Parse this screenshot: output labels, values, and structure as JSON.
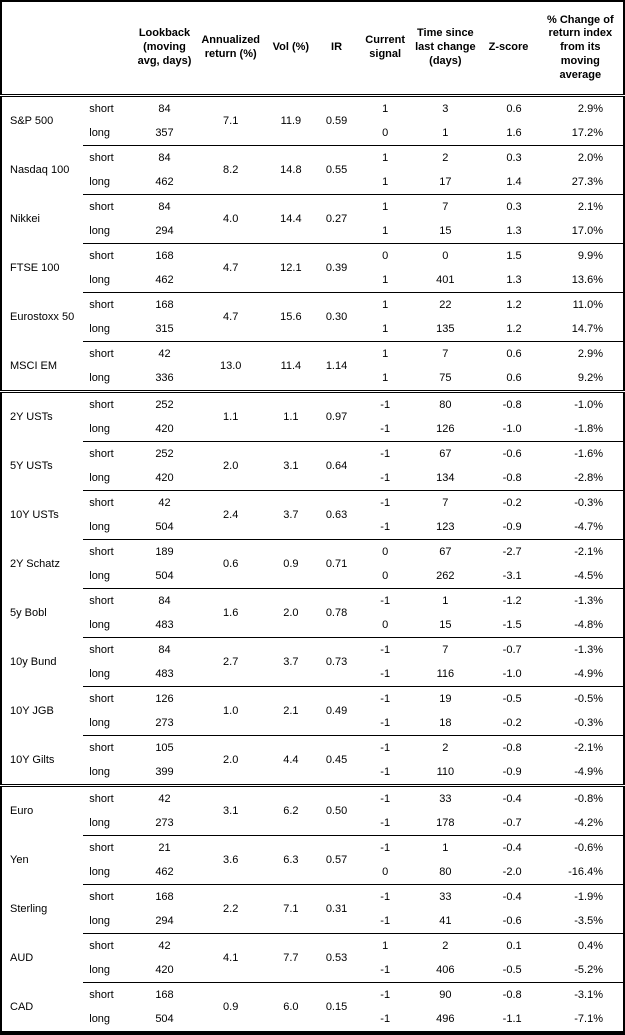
{
  "table": {
    "headers": [
      "",
      "",
      "Lookback (moving avg, days)",
      "Annualized return (%)",
      "Vol (%)",
      "IR",
      "Current signal",
      "Time since last change (days)",
      "Z-score",
      "% Change of return index from its moving average"
    ],
    "sections": [
      {
        "assets": [
          {
            "name": "S&P 500",
            "annualized_return": "7.1",
            "vol": "11.9",
            "ir": "0.59",
            "rows": [
              {
                "horizon": "short",
                "lookback": "84",
                "signal": "1",
                "time_since": "3",
                "z_score": "0.6",
                "pct_change": "2.9%"
              },
              {
                "horizon": "long",
                "lookback": "357",
                "signal": "0",
                "time_since": "1",
                "z_score": "1.6",
                "pct_change": "17.2%"
              }
            ]
          },
          {
            "name": "Nasdaq 100",
            "annualized_return": "8.2",
            "vol": "14.8",
            "ir": "0.55",
            "rows": [
              {
                "horizon": "short",
                "lookback": "84",
                "signal": "1",
                "time_since": "2",
                "z_score": "0.3",
                "pct_change": "2.0%"
              },
              {
                "horizon": "long",
                "lookback": "462",
                "signal": "1",
                "time_since": "17",
                "z_score": "1.4",
                "pct_change": "27.3%"
              }
            ]
          },
          {
            "name": "Nikkei",
            "annualized_return": "4.0",
            "vol": "14.4",
            "ir": "0.27",
            "rows": [
              {
                "horizon": "short",
                "lookback": "84",
                "signal": "1",
                "time_since": "7",
                "z_score": "0.3",
                "pct_change": "2.1%"
              },
              {
                "horizon": "long",
                "lookback": "294",
                "signal": "1",
                "time_since": "15",
                "z_score": "1.3",
                "pct_change": "17.0%"
              }
            ]
          },
          {
            "name": "FTSE 100",
            "annualized_return": "4.7",
            "vol": "12.1",
            "ir": "0.39",
            "rows": [
              {
                "horizon": "short",
                "lookback": "168",
                "signal": "0",
                "time_since": "0",
                "z_score": "1.5",
                "pct_change": "9.9%"
              },
              {
                "horizon": "long",
                "lookback": "462",
                "signal": "1",
                "time_since": "401",
                "z_score": "1.3",
                "pct_change": "13.6%"
              }
            ]
          },
          {
            "name": "Eurostoxx 50",
            "annualized_return": "4.7",
            "vol": "15.6",
            "ir": "0.30",
            "rows": [
              {
                "horizon": "short",
                "lookback": "168",
                "signal": "1",
                "time_since": "22",
                "z_score": "1.2",
                "pct_change": "11.0%"
              },
              {
                "horizon": "long",
                "lookback": "315",
                "signal": "1",
                "time_since": "135",
                "z_score": "1.2",
                "pct_change": "14.7%"
              }
            ]
          },
          {
            "name": "MSCI EM",
            "annualized_return": "13.0",
            "vol": "11.4",
            "ir": "1.14",
            "rows": [
              {
                "horizon": "short",
                "lookback": "42",
                "signal": "1",
                "time_since": "7",
                "z_score": "0.6",
                "pct_change": "2.9%"
              },
              {
                "horizon": "long",
                "lookback": "336",
                "signal": "1",
                "time_since": "75",
                "z_score": "0.6",
                "pct_change": "9.2%"
              }
            ]
          }
        ]
      },
      {
        "assets": [
          {
            "name": "2Y USTs",
            "annualized_return": "1.1",
            "vol": "1.1",
            "ir": "0.97",
            "rows": [
              {
                "horizon": "short",
                "lookback": "252",
                "signal": "-1",
                "time_since": "80",
                "z_score": "-0.8",
                "pct_change": "-1.0%"
              },
              {
                "horizon": "long",
                "lookback": "420",
                "signal": "-1",
                "time_since": "126",
                "z_score": "-1.0",
                "pct_change": "-1.8%"
              }
            ]
          },
          {
            "name": "5Y USTs",
            "annualized_return": "2.0",
            "vol": "3.1",
            "ir": "0.64",
            "rows": [
              {
                "horizon": "short",
                "lookback": "252",
                "signal": "-1",
                "time_since": "67",
                "z_score": "-0.6",
                "pct_change": "-1.6%"
              },
              {
                "horizon": "long",
                "lookback": "420",
                "signal": "-1",
                "time_since": "134",
                "z_score": "-0.8",
                "pct_change": "-2.8%"
              }
            ]
          },
          {
            "name": "10Y USTs",
            "annualized_return": "2.4",
            "vol": "3.7",
            "ir": "0.63",
            "rows": [
              {
                "horizon": "short",
                "lookback": "42",
                "signal": "-1",
                "time_since": "7",
                "z_score": "-0.2",
                "pct_change": "-0.3%"
              },
              {
                "horizon": "long",
                "lookback": "504",
                "signal": "-1",
                "time_since": "123",
                "z_score": "-0.9",
                "pct_change": "-4.7%"
              }
            ]
          },
          {
            "name": "2Y Schatz",
            "annualized_return": "0.6",
            "vol": "0.9",
            "ir": "0.71",
            "rows": [
              {
                "horizon": "short",
                "lookback": "189",
                "signal": "0",
                "time_since": "67",
                "z_score": "-2.7",
                "pct_change": "-2.1%"
              },
              {
                "horizon": "long",
                "lookback": "504",
                "signal": "0",
                "time_since": "262",
                "z_score": "-3.1",
                "pct_change": "-4.5%"
              }
            ]
          },
          {
            "name": "5y Bobl",
            "annualized_return": "1.6",
            "vol": "2.0",
            "ir": "0.78",
            "rows": [
              {
                "horizon": "short",
                "lookback": "84",
                "signal": "-1",
                "time_since": "1",
                "z_score": "-1.2",
                "pct_change": "-1.3%"
              },
              {
                "horizon": "long",
                "lookback": "483",
                "signal": "0",
                "time_since": "15",
                "z_score": "-1.5",
                "pct_change": "-4.8%"
              }
            ]
          },
          {
            "name": "10y Bund",
            "annualized_return": "2.7",
            "vol": "3.7",
            "ir": "0.73",
            "rows": [
              {
                "horizon": "short",
                "lookback": "84",
                "signal": "-1",
                "time_since": "7",
                "z_score": "-0.7",
                "pct_change": "-1.3%"
              },
              {
                "horizon": "long",
                "lookback": "483",
                "signal": "-1",
                "time_since": "116",
                "z_score": "-1.0",
                "pct_change": "-4.9%"
              }
            ]
          },
          {
            "name": "10Y JGB",
            "annualized_return": "1.0",
            "vol": "2.1",
            "ir": "0.49",
            "rows": [
              {
                "horizon": "short",
                "lookback": "126",
                "signal": "-1",
                "time_since": "19",
                "z_score": "-0.5",
                "pct_change": "-0.5%"
              },
              {
                "horizon": "long",
                "lookback": "273",
                "signal": "-1",
                "time_since": "18",
                "z_score": "-0.2",
                "pct_change": "-0.3%"
              }
            ]
          },
          {
            "name": "10Y Gilts",
            "annualized_return": "2.0",
            "vol": "4.4",
            "ir": "0.45",
            "rows": [
              {
                "horizon": "short",
                "lookback": "105",
                "signal": "-1",
                "time_since": "2",
                "z_score": "-0.8",
                "pct_change": "-2.1%"
              },
              {
                "horizon": "long",
                "lookback": "399",
                "signal": "-1",
                "time_since": "110",
                "z_score": "-0.9",
                "pct_change": "-4.9%"
              }
            ]
          }
        ]
      },
      {
        "assets": [
          {
            "name": "Euro",
            "annualized_return": "3.1",
            "vol": "6.2",
            "ir": "0.50",
            "rows": [
              {
                "horizon": "short",
                "lookback": "42",
                "signal": "-1",
                "time_since": "33",
                "z_score": "-0.4",
                "pct_change": "-0.8%"
              },
              {
                "horizon": "long",
                "lookback": "273",
                "signal": "-1",
                "time_since": "178",
                "z_score": "-0.7",
                "pct_change": "-4.2%"
              }
            ]
          },
          {
            "name": "Yen",
            "annualized_return": "3.6",
            "vol": "6.3",
            "ir": "0.57",
            "rows": [
              {
                "horizon": "short",
                "lookback": "21",
                "signal": "-1",
                "time_since": "1",
                "z_score": "-0.4",
                "pct_change": "-0.6%"
              },
              {
                "horizon": "long",
                "lookback": "462",
                "signal": "0",
                "time_since": "80",
                "z_score": "-2.0",
                "pct_change": "-16.4%"
              }
            ]
          },
          {
            "name": "Sterling",
            "annualized_return": "2.2",
            "vol": "7.1",
            "ir": "0.31",
            "rows": [
              {
                "horizon": "short",
                "lookback": "168",
                "signal": "-1",
                "time_since": "33",
                "z_score": "-0.4",
                "pct_change": "-1.9%"
              },
              {
                "horizon": "long",
                "lookback": "294",
                "signal": "-1",
                "time_since": "41",
                "z_score": "-0.6",
                "pct_change": "-3.5%"
              }
            ]
          },
          {
            "name": "AUD",
            "annualized_return": "4.1",
            "vol": "7.7",
            "ir": "0.53",
            "rows": [
              {
                "horizon": "short",
                "lookback": "42",
                "signal": "1",
                "time_since": "2",
                "z_score": "0.1",
                "pct_change": "0.4%"
              },
              {
                "horizon": "long",
                "lookback": "420",
                "signal": "-1",
                "time_since": "406",
                "z_score": "-0.5",
                "pct_change": "-5.2%"
              }
            ]
          },
          {
            "name": "CAD",
            "annualized_return": "0.9",
            "vol": "6.0",
            "ir": "0.15",
            "rows": [
              {
                "horizon": "short",
                "lookback": "168",
                "signal": "-1",
                "time_since": "90",
                "z_score": "-0.8",
                "pct_change": "-3.1%"
              },
              {
                "horizon": "long",
                "lookback": "504",
                "signal": "-1",
                "time_since": "496",
                "z_score": "-1.1",
                "pct_change": "-7.1%"
              }
            ]
          }
        ]
      }
    ]
  }
}
